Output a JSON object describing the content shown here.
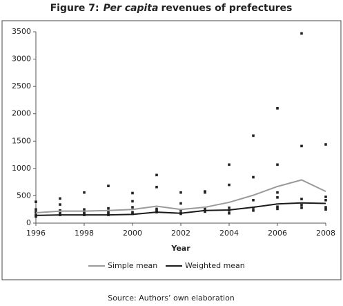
{
  "chart_data": {
    "type": "line",
    "title_parts": [
      "Figure 7:",
      "Per capita",
      "revenues of prefectures"
    ],
    "x_label": "Year",
    "source": "Source: Authors’ own elaboration",
    "x": [
      1996,
      1997,
      1998,
      1999,
      2000,
      2001,
      2002,
      2003,
      2004,
      2005,
      2006,
      2007,
      2008
    ],
    "series": [
      {
        "name": "Simple mean",
        "color": "#9a9a9a",
        "values": [
          190,
          220,
          220,
          230,
          250,
          310,
          250,
          290,
          380,
          510,
          670,
          790,
          580
        ]
      },
      {
        "name": "Weighted mean",
        "color": "#1a1a1a",
        "values": [
          140,
          150,
          150,
          150,
          160,
          200,
          180,
          230,
          240,
          290,
          350,
          370,
          360
        ]
      }
    ],
    "points": {
      "color": "#222222",
      "x": [
        1996,
        1996,
        1996,
        1996,
        1996,
        1997,
        1997,
        1997,
        1997,
        1997,
        1998,
        1998,
        1998,
        1998,
        1998,
        1999,
        1999,
        1999,
        1999,
        1999,
        2000,
        2000,
        2000,
        2000,
        2000,
        2001,
        2001,
        2001,
        2001,
        2001,
        2002,
        2002,
        2002,
        2002,
        2002,
        2003,
        2003,
        2003,
        2003,
        2003,
        2004,
        2004,
        2004,
        2004,
        2004,
        2005,
        2005,
        2005,
        2005,
        2005,
        2006,
        2006,
        2006,
        2006,
        2006,
        2006,
        2007,
        2007,
        2007,
        2007,
        2007,
        2008,
        2008,
        2008,
        2008,
        2008
      ],
      "y": [
        390,
        250,
        200,
        150,
        120,
        450,
        340,
        230,
        180,
        150,
        560,
        250,
        200,
        170,
        150,
        680,
        270,
        220,
        180,
        150,
        550,
        400,
        290,
        200,
        170,
        880,
        660,
        260,
        220,
        200,
        560,
        360,
        240,
        190,
        170,
        580,
        560,
        280,
        240,
        210,
        1070,
        700,
        280,
        230,
        180,
        1600,
        840,
        420,
        280,
        230,
        2100,
        1070,
        560,
        470,
        300,
        260,
        3470,
        1410,
        440,
        330,
        280,
        1440,
        480,
        420,
        290,
        250
      ]
    },
    "xlim": [
      1996,
      2008
    ],
    "xticks": [
      1996,
      1998,
      2000,
      2002,
      2004,
      2006,
      2008
    ],
    "ylim": [
      0,
      3500
    ],
    "yticks": [
      0,
      500,
      1000,
      1500,
      2000,
      2500,
      3000,
      3500
    ],
    "grid": false
  }
}
